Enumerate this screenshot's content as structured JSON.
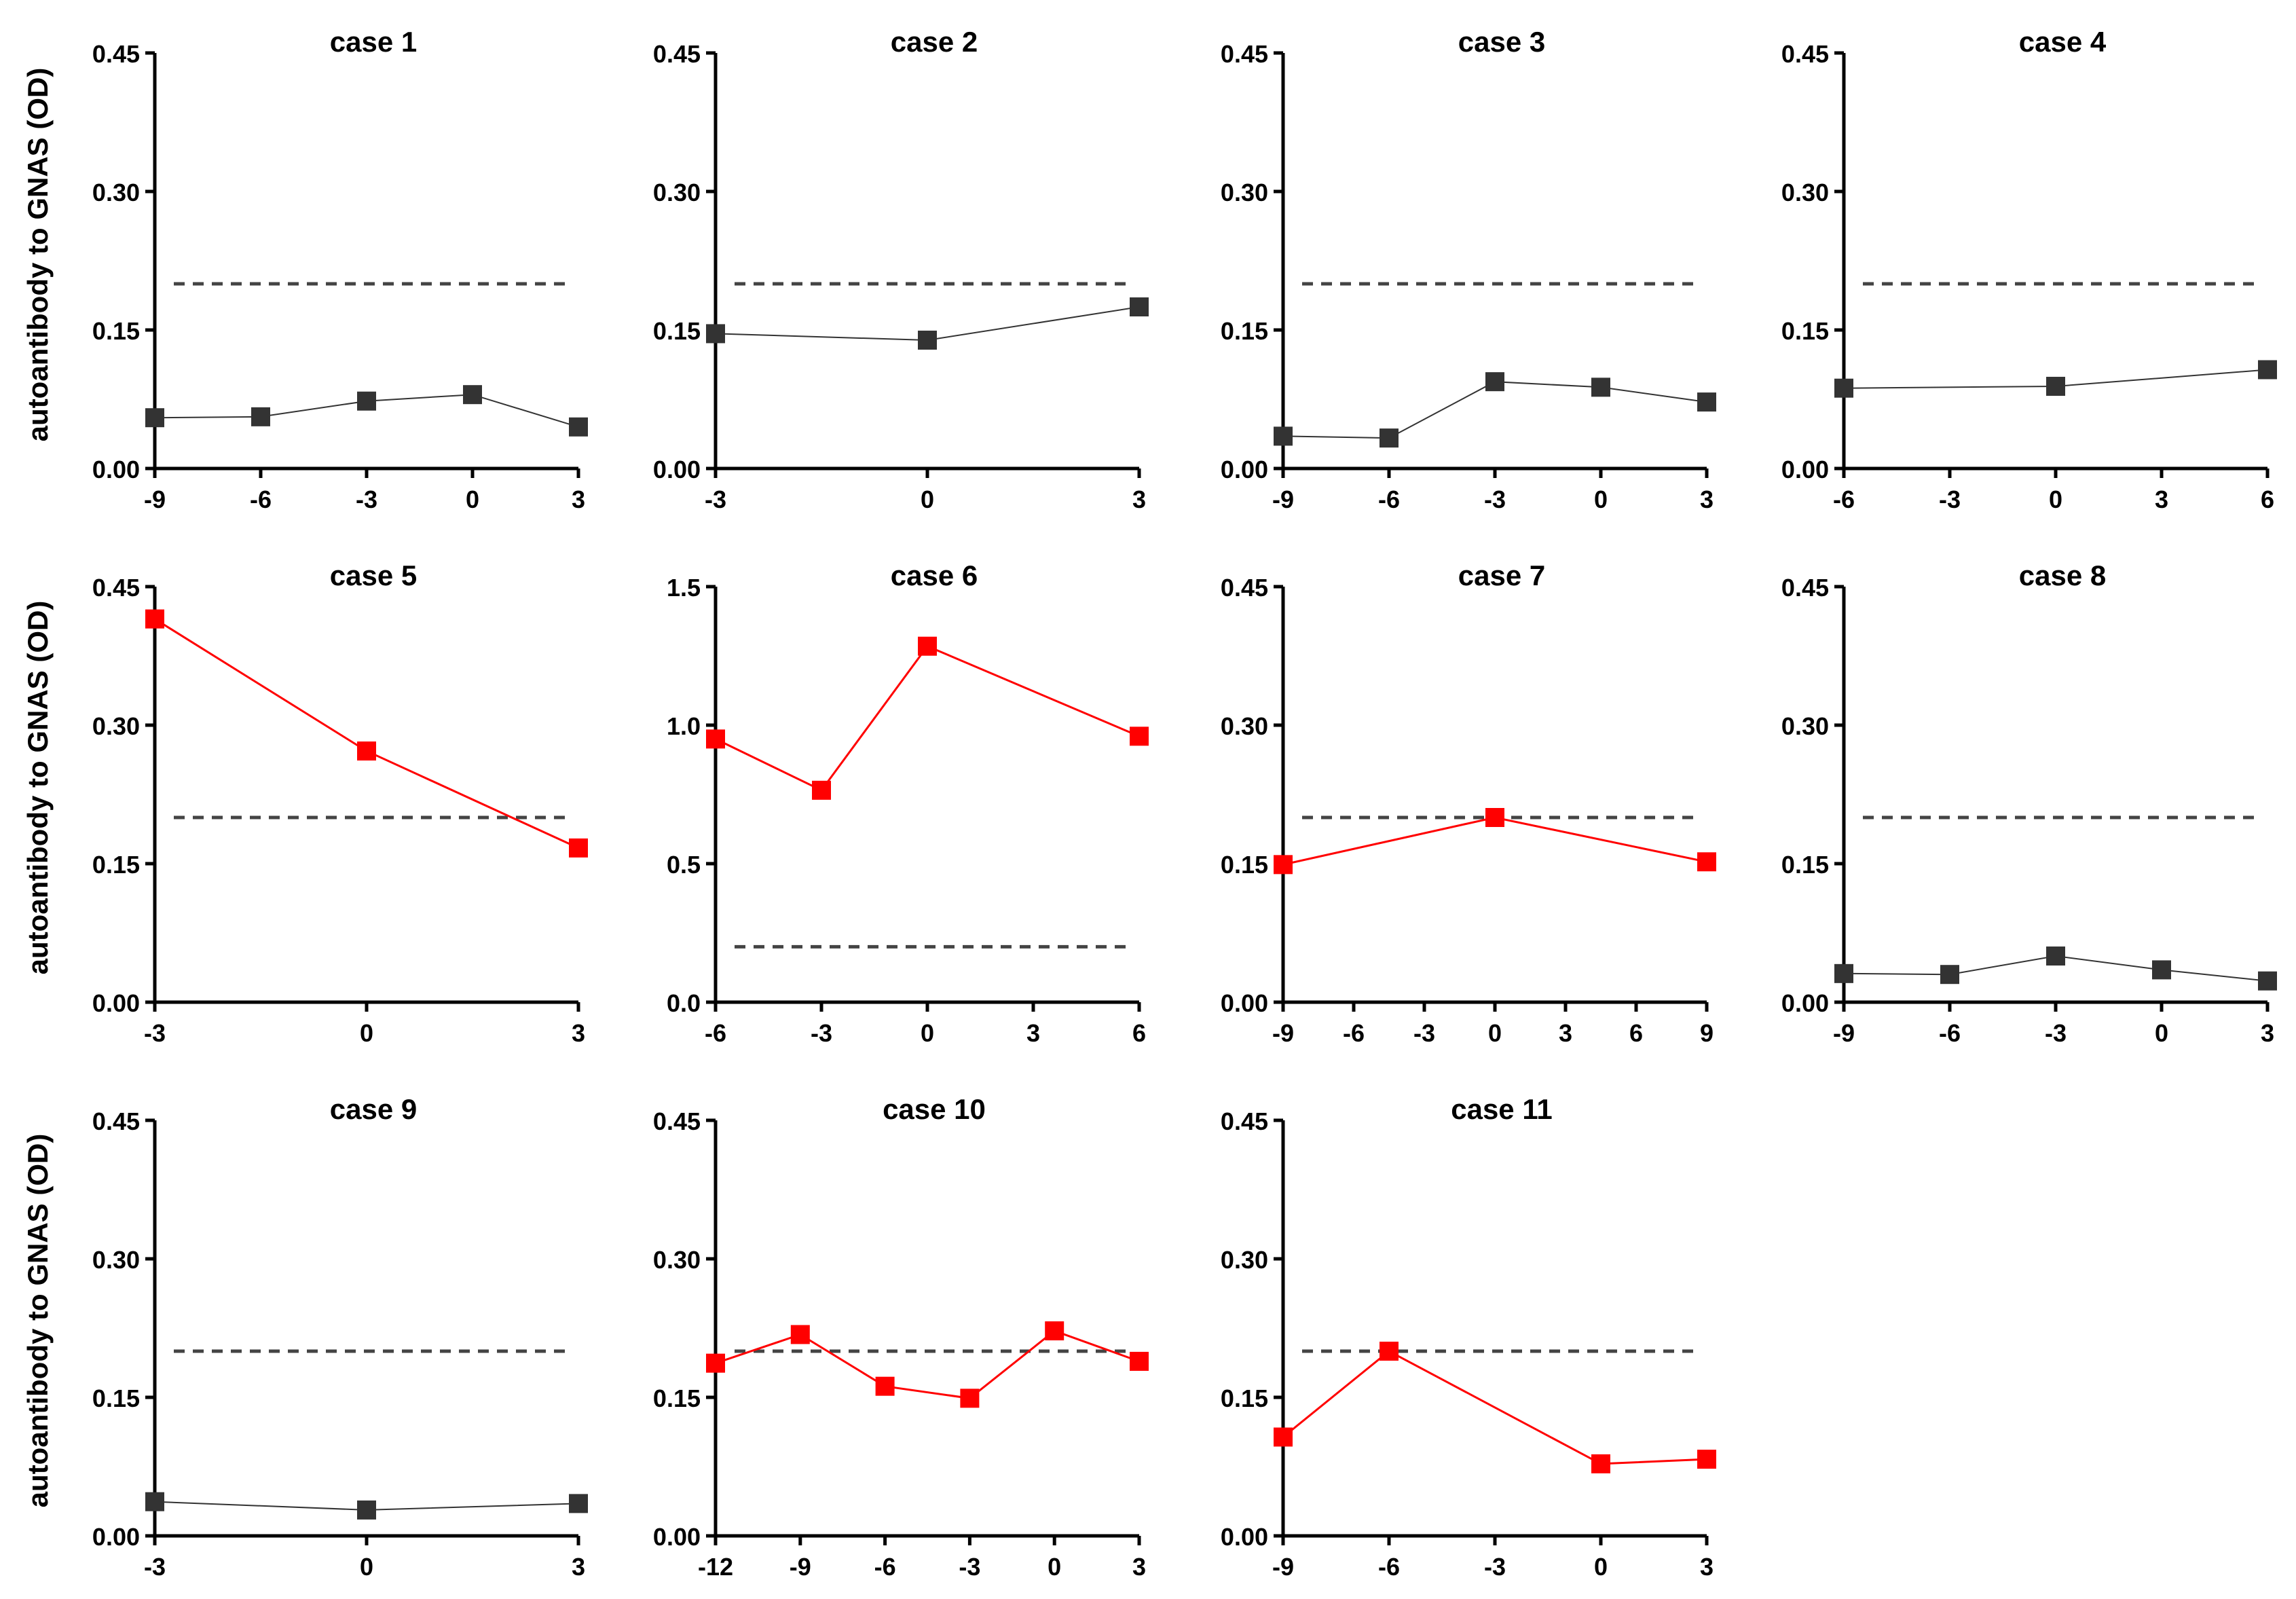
{
  "figure": {
    "ylabel": "autoantibody to GNAS (OD)",
    "threshold": 0.2,
    "colors": {
      "negative": "#333333",
      "positive": "#ff0000",
      "axis": "#000000",
      "threshold_line": "#444444"
    }
  },
  "chart_data": [
    {
      "type": "line",
      "title": "case 1",
      "color": "negative",
      "xlim": [
        -9,
        3
      ],
      "xticks": [
        -9,
        -6,
        -3,
        0,
        3
      ],
      "ylim": [
        0,
        0.45
      ],
      "yticks": [
        0,
        0.15,
        0.3,
        0.45
      ],
      "ytick_labels": [
        "0.00",
        "0.15",
        "0.30",
        "0.45"
      ],
      "threshold": 0.2,
      "x": [
        -9,
        -6,
        -3,
        0,
        3
      ],
      "y": [
        0.055,
        0.056,
        0.073,
        0.08,
        0.045
      ]
    },
    {
      "type": "line",
      "title": "case 2",
      "color": "negative",
      "xlim": [
        -3,
        3
      ],
      "xticks": [
        -3,
        0,
        3
      ],
      "ylim": [
        0,
        0.45
      ],
      "yticks": [
        0,
        0.15,
        0.3,
        0.45
      ],
      "ytick_labels": [
        "0.00",
        "0.15",
        "0.30",
        "0.45"
      ],
      "threshold": 0.2,
      "x": [
        -3,
        0,
        3
      ],
      "y": [
        0.146,
        0.139,
        0.175
      ]
    },
    {
      "type": "line",
      "title": "case 3",
      "color": "negative",
      "xlim": [
        -9,
        3
      ],
      "xticks": [
        -9,
        -6,
        -3,
        0,
        3
      ],
      "ylim": [
        0,
        0.45
      ],
      "yticks": [
        0,
        0.15,
        0.3,
        0.45
      ],
      "ytick_labels": [
        "0.00",
        "0.15",
        "0.30",
        "0.45"
      ],
      "threshold": 0.2,
      "x": [
        -9,
        -6,
        -3,
        0,
        3
      ],
      "y": [
        0.035,
        0.033,
        0.094,
        0.088,
        0.072
      ]
    },
    {
      "type": "line",
      "title": "case 4",
      "color": "negative",
      "xlim": [
        -6,
        6
      ],
      "xticks": [
        -6,
        -3,
        0,
        3,
        6
      ],
      "ylim": [
        0,
        0.45
      ],
      "yticks": [
        0,
        0.15,
        0.3,
        0.45
      ],
      "ytick_labels": [
        "0.00",
        "0.15",
        "0.30",
        "0.45"
      ],
      "threshold": 0.2,
      "x": [
        -6,
        0,
        6
      ],
      "y": [
        0.087,
        0.089,
        0.107
      ]
    },
    {
      "type": "line",
      "title": "case 5",
      "color": "positive",
      "xlim": [
        -3,
        3
      ],
      "xticks": [
        -3,
        0,
        3
      ],
      "ylim": [
        0,
        0.45
      ],
      "yticks": [
        0,
        0.15,
        0.3,
        0.45
      ],
      "ytick_labels": [
        "0.00",
        "0.15",
        "0.30",
        "0.45"
      ],
      "threshold": 0.2,
      "x": [
        -3,
        0,
        3
      ],
      "y": [
        0.415,
        0.272,
        0.167
      ]
    },
    {
      "type": "line",
      "title": "case 6",
      "color": "positive",
      "xlim": [
        -6,
        6
      ],
      "xticks": [
        -6,
        -3,
        0,
        3,
        6
      ],
      "ylim": [
        0,
        1.5
      ],
      "yticks": [
        0,
        0.5,
        1.0,
        1.5
      ],
      "ytick_labels": [
        "0.0",
        "0.5",
        "1.0",
        "1.5"
      ],
      "threshold": 0.2,
      "x": [
        -6,
        -3,
        0,
        6
      ],
      "y": [
        0.95,
        0.765,
        1.285,
        0.96
      ]
    },
    {
      "type": "line",
      "title": "case 7",
      "color": "positive",
      "xlim": [
        -9,
        9
      ],
      "xticks": [
        -9,
        -6,
        -3,
        0,
        3,
        6,
        9
      ],
      "ylim": [
        0,
        0.45
      ],
      "yticks": [
        0,
        0.15,
        0.3,
        0.45
      ],
      "ytick_labels": [
        "0.00",
        "0.15",
        "0.30",
        "0.45"
      ],
      "threshold": 0.2,
      "x": [
        -9,
        0,
        9
      ],
      "y": [
        0.149,
        0.2,
        0.152
      ]
    },
    {
      "type": "line",
      "title": "case 8",
      "color": "negative",
      "xlim": [
        -9,
        3
      ],
      "xticks": [
        -9,
        -6,
        -3,
        0,
        3
      ],
      "ylim": [
        0,
        0.45
      ],
      "yticks": [
        0,
        0.15,
        0.3,
        0.45
      ],
      "ytick_labels": [
        "0.00",
        "0.15",
        "0.30",
        "0.45"
      ],
      "threshold": 0.2,
      "x": [
        -9,
        -6,
        -3,
        0,
        3
      ],
      "y": [
        0.031,
        0.03,
        0.05,
        0.035,
        0.023
      ]
    },
    {
      "type": "line",
      "title": "case 9",
      "color": "negative",
      "xlim": [
        -3,
        3
      ],
      "xticks": [
        -3,
        0,
        3
      ],
      "ylim": [
        0,
        0.45
      ],
      "yticks": [
        0,
        0.15,
        0.3,
        0.45
      ],
      "ytick_labels": [
        "0.00",
        "0.15",
        "0.30",
        "0.45"
      ],
      "threshold": 0.2,
      "x": [
        -3,
        0,
        3
      ],
      "y": [
        0.037,
        0.028,
        0.035
      ]
    },
    {
      "type": "line",
      "title": "case 10",
      "color": "positive",
      "xlim": [
        -12,
        3
      ],
      "xticks": [
        -12,
        -9,
        -6,
        -3,
        0,
        3
      ],
      "ylim": [
        0,
        0.45
      ],
      "yticks": [
        0,
        0.15,
        0.3,
        0.45
      ],
      "ytick_labels": [
        "0.00",
        "0.15",
        "0.30",
        "0.45"
      ],
      "threshold": 0.2,
      "x": [
        -12,
        -9,
        -6,
        -3,
        0,
        3
      ],
      "y": [
        0.187,
        0.218,
        0.162,
        0.149,
        0.222,
        0.189
      ]
    },
    {
      "type": "line",
      "title": "case 11",
      "color": "positive",
      "xlim": [
        -9,
        3
      ],
      "xticks": [
        -9,
        -6,
        -3,
        0,
        3
      ],
      "ylim": [
        0,
        0.45
      ],
      "yticks": [
        0,
        0.15,
        0.3,
        0.45
      ],
      "ytick_labels": [
        "0.00",
        "0.15",
        "0.30",
        "0.45"
      ],
      "threshold": 0.2,
      "x": [
        -9,
        -6,
        0,
        3
      ],
      "y": [
        0.107,
        0.2,
        0.078,
        0.083
      ]
    }
  ]
}
